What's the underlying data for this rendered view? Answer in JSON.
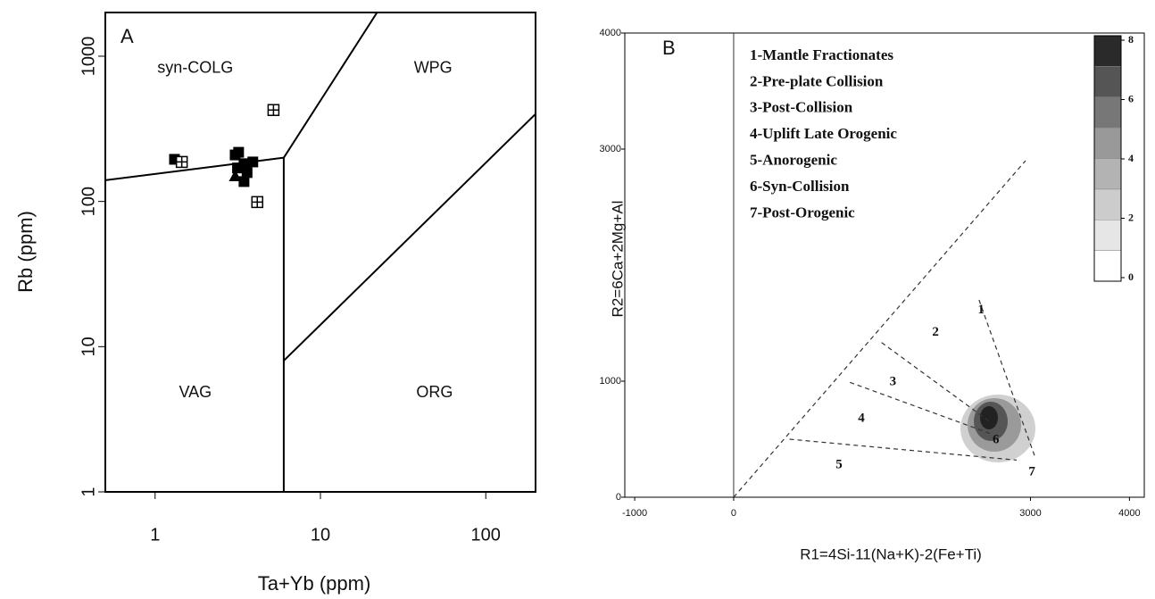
{
  "chart_data": [
    {
      "type": "scatter",
      "panel_label": "A",
      "x_label": "Ta+Yb (ppm)",
      "y_label": "Rb (ppm)",
      "x_log": true,
      "y_log": true,
      "xlim": [
        0.5,
        200
      ],
      "ylim": [
        1,
        2000
      ],
      "xticks": [
        1,
        10,
        100
      ],
      "yticks": [
        1,
        10,
        100,
        1000
      ],
      "color": "#000000",
      "boundary_style": "solid",
      "series": [
        {
          "marker": "filled-square",
          "x": [
            1.31,
            3.05,
            3.2,
            3.45,
            3.9,
            3.6,
            3.15,
            3.45
          ],
          "y": [
            195,
            209,
            218,
            182,
            187,
            158,
            170,
            137
          ]
        },
        {
          "marker": "hatched-square",
          "x": [
            1.45,
            4.15,
            5.2
          ],
          "y": [
            187,
            99,
            426
          ]
        },
        {
          "marker": "triangle",
          "x": [
            3.05
          ],
          "y": [
            150
          ]
        }
      ],
      "boundaries": [
        {
          "x": [
            0.5,
            6
          ],
          "y": [
            140,
            200
          ]
        },
        {
          "x": [
            6,
            6
          ],
          "y": [
            200,
            1
          ]
        },
        {
          "x": [
            6,
            22
          ],
          "y": [
            200,
            2000
          ]
        },
        {
          "x": [
            6,
            200
          ],
          "y": [
            8,
            400
          ]
        }
      ],
      "annotations": [
        {
          "text": "syn-COLG",
          "x": 1.75,
          "y": 820
        },
        {
          "text": "WPG",
          "x": 48,
          "y": 820
        },
        {
          "text": "VAG",
          "x": 1.75,
          "y": 4.8
        },
        {
          "text": "ORG",
          "x": 49,
          "y": 4.8
        }
      ]
    },
    {
      "type": "contour",
      "panel_label": "B",
      "x_label": "R1=4Si-11(Na+K)-2(Fe+Ti)",
      "y_label": "R2=6Ca+2Mg+Al",
      "x_log": false,
      "y_log": false,
      "xlim": [
        -1100,
        4150
      ],
      "ylim": [
        0,
        4000
      ],
      "xticks": [
        -1000,
        0,
        3000,
        4000
      ],
      "yticks": [
        0,
        1000,
        3000,
        4000
      ],
      "color": "#333333",
      "boundary_style": "dashed",
      "zero_line": true,
      "boundaries": [
        {
          "x": [
            0,
            2950
          ],
          "y": [
            0,
            2900
          ]
        },
        {
          "x": [
            2480,
            3040
          ],
          "y": [
            1700,
            360
          ]
        },
        {
          "x": [
            1495,
            2590
          ],
          "y": [
            1333,
            650
          ]
        },
        {
          "x": [
            1175,
            2590
          ],
          "y": [
            990,
            550
          ]
        },
        {
          "x": [
            565,
            2860
          ],
          "y": [
            500,
            320
          ]
        }
      ],
      "annotations": [
        {
          "text": "1",
          "x": 2500,
          "y": 1610
        },
        {
          "text": "2",
          "x": 2040,
          "y": 1420
        },
        {
          "text": "3",
          "x": 1610,
          "y": 990
        },
        {
          "text": "4",
          "x": 1290,
          "y": 675
        },
        {
          "text": "5",
          "x": 1065,
          "y": 275
        },
        {
          "text": "6",
          "x": 2650,
          "y": 490
        },
        {
          "text": "7",
          "x": 3015,
          "y": 215
        }
      ],
      "legend_entries": [
        "1-Mantle Fractionates",
        "2-Pre-plate Collision",
        "3-Post-Collision",
        "4-Uplift Late Orogenic",
        "5-Anorogenic",
        "6-Syn-Collision",
        "7-Post-Orogenic"
      ],
      "colorbar": {
        "lim": [
          0,
          8
        ],
        "ticks": [
          0,
          2,
          4,
          6,
          8
        ],
        "colors": [
          "#ffffff",
          "#e6e6e6",
          "#cccccc",
          "#b3b3b3",
          "#999999",
          "#777777",
          "#555555",
          "#2a2a2a"
        ]
      }
    }
  ]
}
